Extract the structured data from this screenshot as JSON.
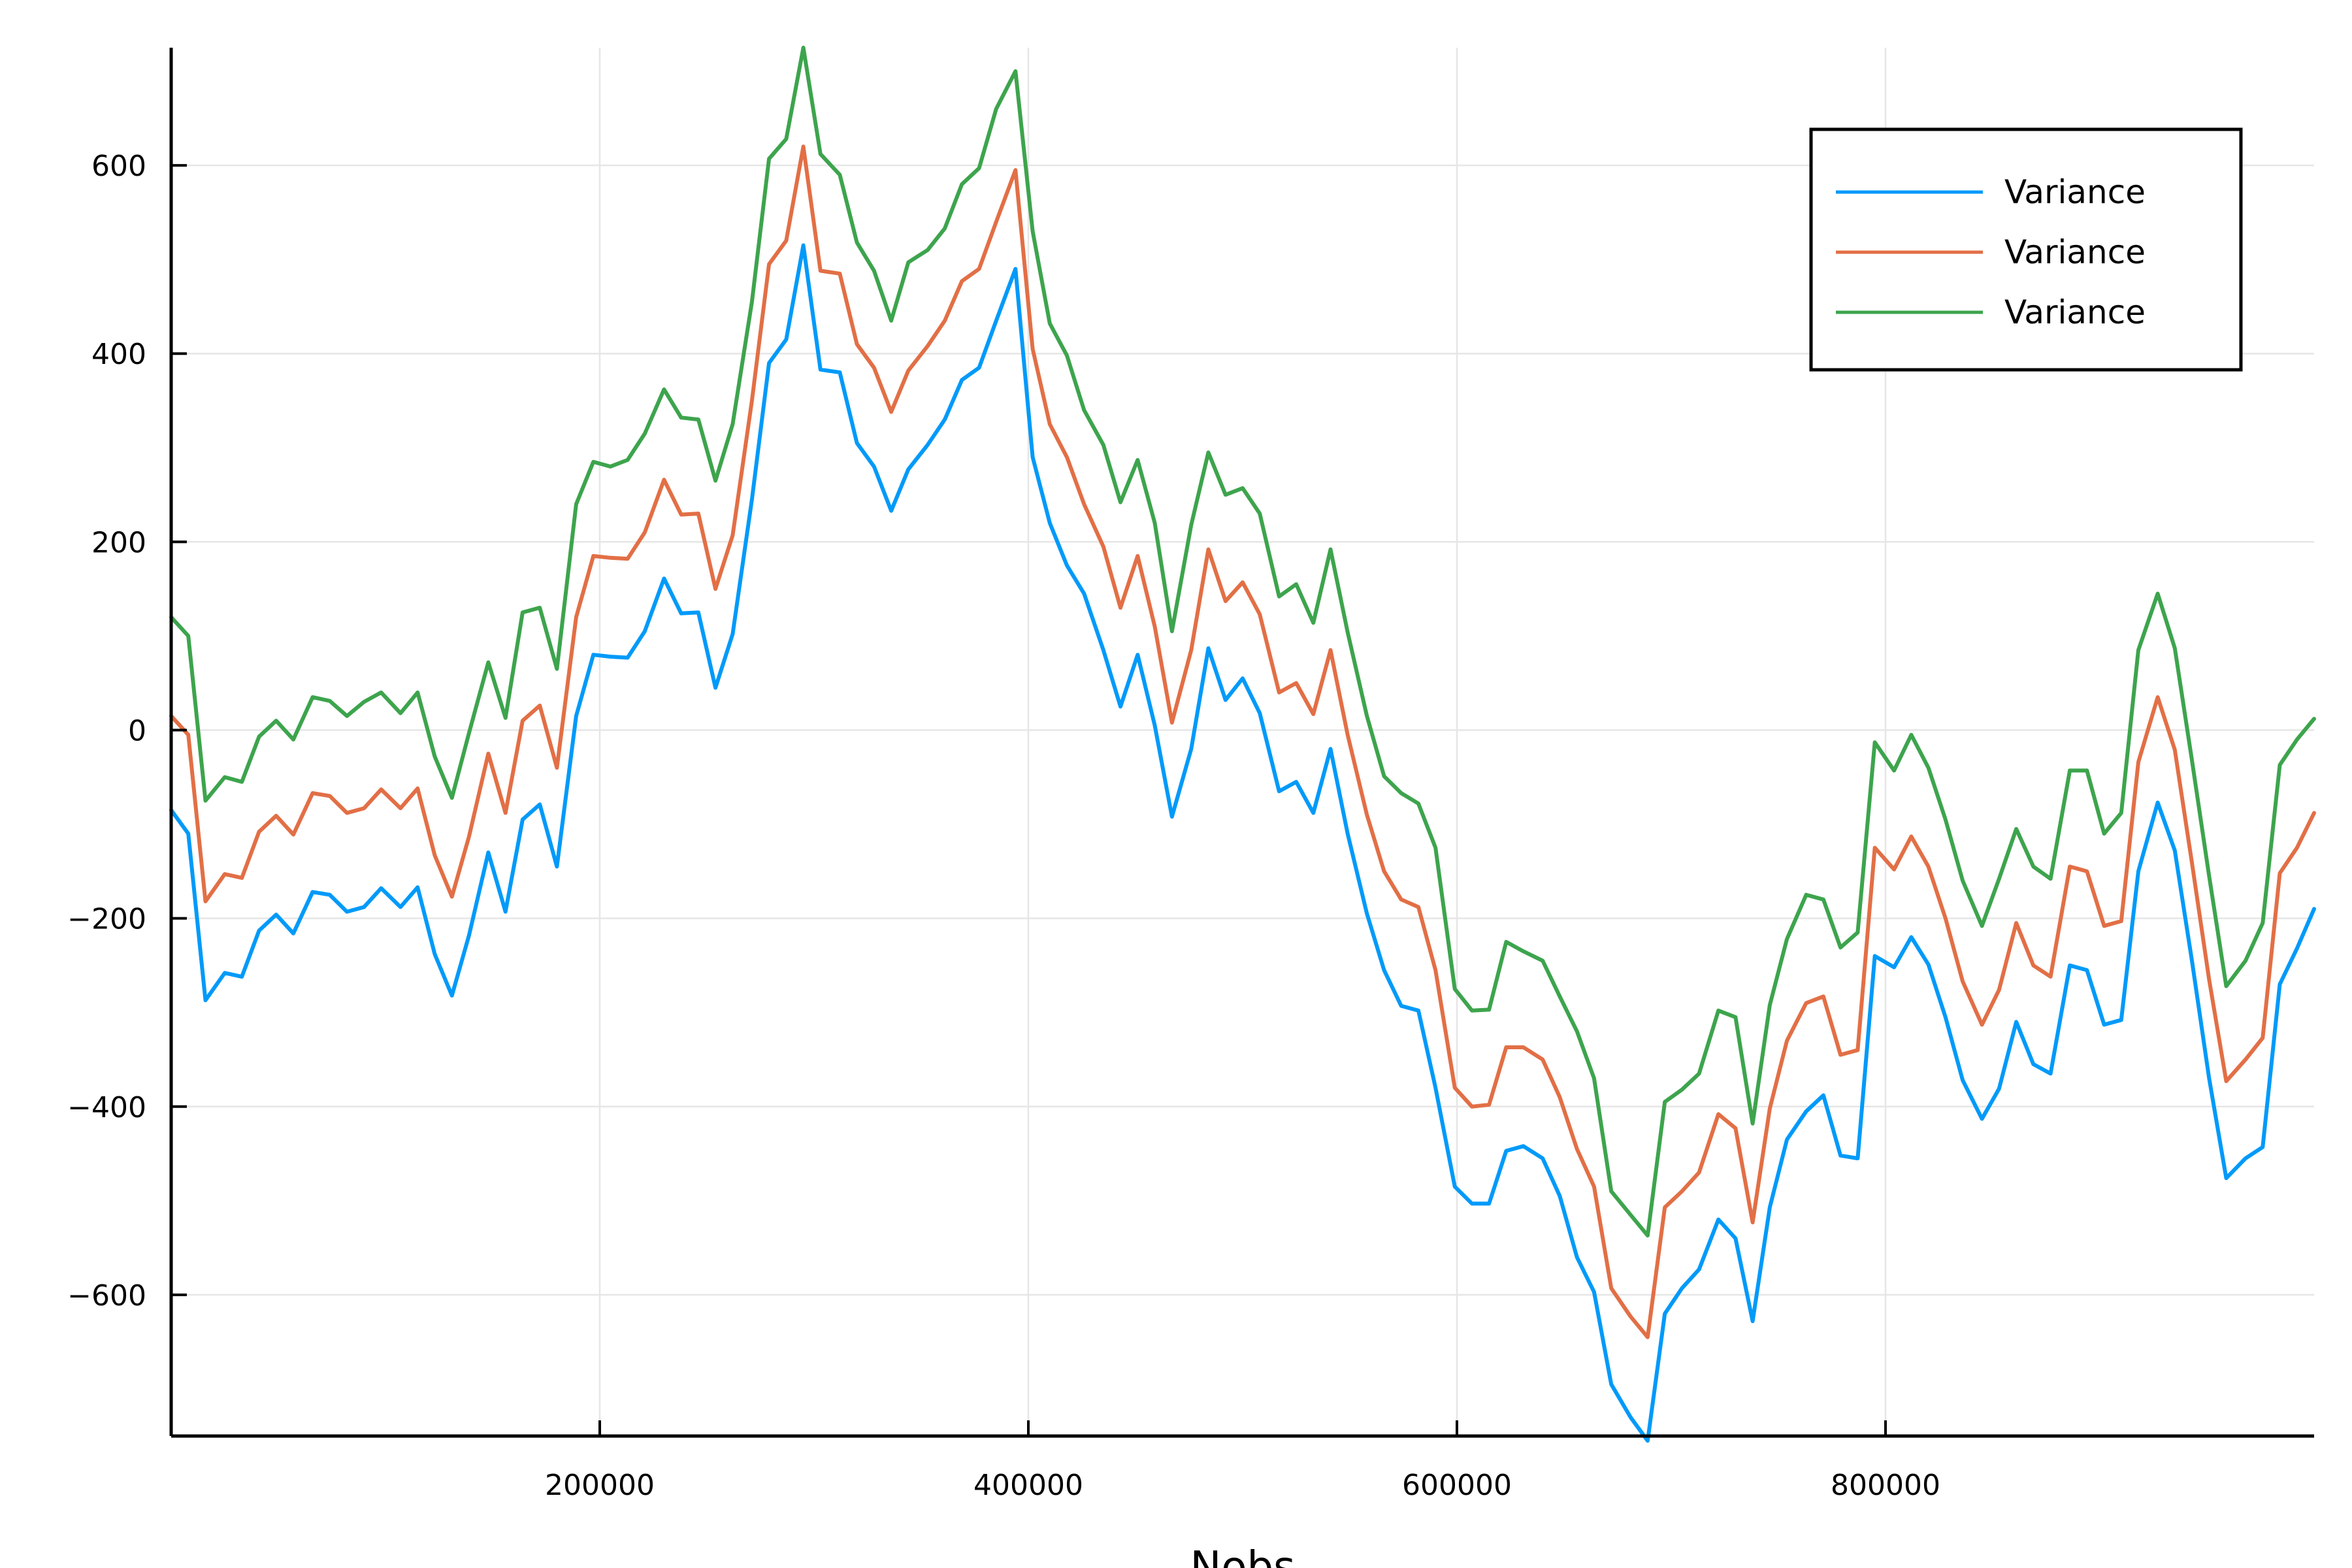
{
  "chart_data": {
    "type": "line",
    "title": "",
    "xlabel": "Nobs",
    "ylabel": "",
    "xlim": [
      1,
      1000000
    ],
    "ylim": [
      -750,
      725
    ],
    "xticks": [
      200000,
      400000,
      600000,
      800000
    ],
    "yticks": [
      -600,
      -400,
      -200,
      0,
      200,
      400,
      600
    ],
    "xtick_labels": [
      "200000",
      "400000",
      "600000",
      "800000"
    ],
    "ytick_labels": [
      "-600",
      "-400",
      "-200",
      "0",
      "200",
      "400",
      "600"
    ],
    "grid": true,
    "legend_position": "top-right",
    "x": [
      1,
      8000,
      16000,
      25000,
      33000,
      41000,
      49000,
      57000,
      66000,
      74000,
      82000,
      90000,
      98000,
      107000,
      115000,
      123000,
      131000,
      139000,
      148000,
      156000,
      164000,
      172000,
      180000,
      189000,
      197000,
      205000,
      213000,
      221000,
      230000,
      238000,
      246000,
      254000,
      262000,
      271000,
      279000,
      287000,
      295000,
      303000,
      312000,
      320000,
      328000,
      336000,
      344000,
      353000,
      361000,
      369000,
      377000,
      385000,
      394000,
      402000,
      410000,
      418000,
      426000,
      435000,
      443000,
      451000,
      459000,
      467000,
      476000,
      484000,
      492000,
      500000,
      508000,
      517000,
      525000,
      533000,
      541000,
      549000,
      558000,
      566000,
      574000,
      582000,
      590000,
      599000,
      607000,
      615000,
      623000,
      631000,
      640000,
      648000,
      656000,
      664000,
      672000,
      681000,
      689000,
      697000,
      705000,
      713000,
      722000,
      730000,
      738000,
      746000,
      754000,
      763000,
      771000,
      779000,
      787000,
      795000,
      804000,
      812000,
      820000,
      828000,
      836000,
      845000,
      853000,
      861000,
      869000,
      877000,
      886000,
      894000,
      902000,
      910000,
      918000,
      927000,
      935000,
      943000,
      951000,
      959000,
      968000,
      976000,
      984000,
      992000,
      1000000
    ],
    "series": [
      {
        "name": "Variance",
        "color": "#009af9",
        "values": [
          -85,
          -110,
          -287,
          -258,
          -262,
          -213,
          -196,
          -216,
          -172,
          -175,
          -193,
          -188,
          -168,
          -188,
          -167,
          -238,
          -282,
          -218,
          -130,
          -193,
          -95,
          -79,
          -145,
          15,
          80,
          78,
          77,
          105,
          161,
          124,
          125,
          45,
          102,
          245,
          390,
          415,
          515,
          383,
          380,
          305,
          280,
          233,
          277,
          303,
          330,
          372,
          385,
          435,
          490,
          290,
          220,
          175,
          145,
          85,
          25,
          80,
          5,
          -92,
          -20,
          87,
          32,
          55,
          18,
          -65,
          -55,
          -88,
          -20,
          -110,
          -195,
          -255,
          -293,
          -298,
          -380,
          -485,
          -503,
          -503,
          -447,
          -442,
          -455,
          -495,
          -560,
          -597,
          -695,
          -730,
          -755,
          -620,
          -593,
          -573,
          -520,
          -540,
          -628,
          -507,
          -435,
          -405,
          -388,
          -452,
          -455,
          -240,
          -252,
          -220,
          -249,
          -305,
          -372,
          -413,
          -381,
          -310,
          -355,
          -365,
          -250,
          -255,
          -313,
          -308,
          -150,
          -77,
          -128,
          -245,
          -370,
          -476,
          -455,
          -443,
          -270,
          -232,
          -190
        ]
      },
      {
        "name": "Variance",
        "color": "#e26f46",
        "values": [
          15,
          -5,
          -182,
          -153,
          -157,
          -108,
          -91,
          -111,
          -67,
          -70,
          -88,
          -83,
          -63,
          -83,
          -62,
          -133,
          -177,
          -113,
          -25,
          -88,
          10,
          26,
          -40,
          120,
          185,
          183,
          182,
          210,
          266,
          229,
          230,
          150,
          207,
          350,
          495,
          520,
          620,
          488,
          485,
          410,
          385,
          338,
          382,
          408,
          435,
          477,
          490,
          540,
          595,
          405,
          325,
          290,
          240,
          195,
          130,
          185,
          110,
          8,
          85,
          192,
          137,
          157,
          123,
          40,
          50,
          17,
          85,
          -5,
          -90,
          -150,
          -180,
          -188,
          -255,
          -380,
          -400,
          -398,
          -337,
          -337,
          -350,
          -390,
          -445,
          -485,
          -593,
          -623,
          -645,
          -507,
          -490,
          -470,
          -408,
          -423,
          -523,
          -402,
          -330,
          -290,
          -283,
          -345,
          -340,
          -125,
          -148,
          -113,
          -145,
          -200,
          -267,
          -313,
          -276,
          -205,
          -250,
          -262,
          -145,
          -150,
          -208,
          -203,
          -34,
          35,
          -21,
          -141,
          -265,
          -373,
          -350,
          -327,
          -152,
          -125,
          -88
        ]
      },
      {
        "name": "Variance",
        "color": "#3da44d",
        "values": [
          120,
          100,
          -75,
          -50,
          -55,
          -7,
          10,
          -10,
          35,
          31,
          15,
          30,
          40,
          18,
          40,
          -28,
          -72,
          -3,
          72,
          13,
          125,
          130,
          65,
          240,
          285,
          280,
          287,
          315,
          362,
          332,
          330,
          265,
          325,
          455,
          607,
          628,
          725,
          612,
          590,
          518,
          488,
          435,
          497,
          510,
          533,
          580,
          597,
          660,
          700,
          530,
          432,
          398,
          340,
          303,
          242,
          287,
          220,
          105,
          218,
          295,
          250,
          257,
          230,
          142,
          155,
          114,
          192,
          104,
          15,
          -49,
          -67,
          -78,
          -125,
          -275,
          -298,
          -297,
          -225,
          -235,
          -245,
          -283,
          -320,
          -370,
          -490,
          -515,
          -537,
          -395,
          -382,
          -365,
          -298,
          -305,
          -418,
          -292,
          -222,
          -175,
          -180,
          -231,
          -215,
          -13,
          -43,
          -5,
          -40,
          -95,
          -160,
          -208,
          -158,
          -105,
          -145,
          -158,
          -43,
          -43,
          -110,
          -88,
          85,
          145,
          87,
          -32,
          -155,
          -272,
          -245,
          -205,
          -37,
          -10,
          12
        ]
      }
    ]
  }
}
